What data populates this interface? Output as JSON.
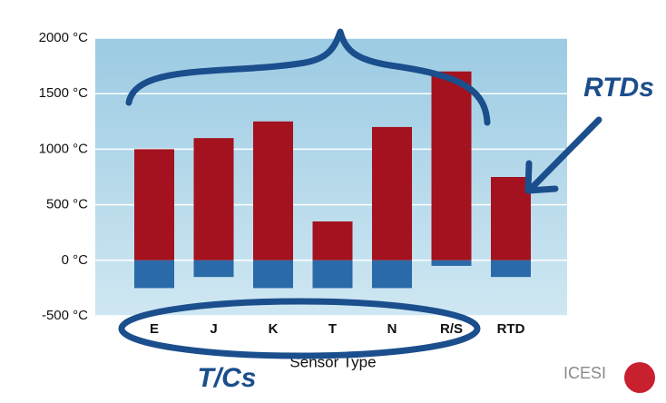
{
  "chart_data": {
    "type": "range_bar",
    "categories": [
      "E",
      "J",
      "K",
      "T",
      "N",
      "R/S",
      "RTD"
    ],
    "series": [
      {
        "color": "#a3121e",
        "values": [
          1000,
          1100,
          1250,
          350,
          1200,
          1700,
          750
        ]
      },
      {
        "color": "#2b6aa8",
        "values": [
          -250,
          -150,
          -250,
          -250,
          -250,
          -50,
          -150
        ]
      }
    ],
    "x_label": "Sensor Type",
    "ylim": [
      -500,
      2000
    ],
    "yticks": [
      {
        "value": -500,
        "label": "-500 °C"
      },
      {
        "value": 0,
        "label": "0 °C"
      },
      {
        "value": 500,
        "label": "500 °C"
      },
      {
        "value": 1000,
        "label": "1000 °C"
      },
      {
        "value": 1500,
        "label": "1500 °C"
      },
      {
        "value": 2000,
        "label": "2000 °C"
      }
    ],
    "grid": true,
    "annotations": [
      "RTDs",
      "T/Cs",
      "ICESI"
    ]
  }
}
